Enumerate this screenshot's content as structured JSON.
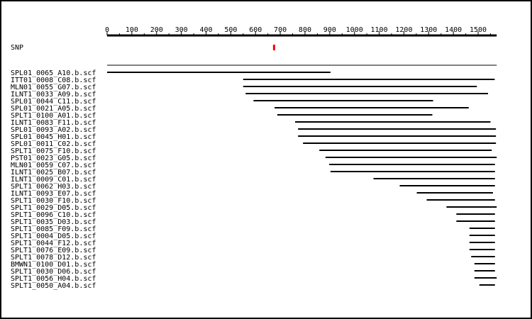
{
  "colors": {
    "background": "#ffffff",
    "axis": "#000000",
    "read_line": "#000000",
    "snp_marker": "#ff0000"
  },
  "snp_track": {
    "label": "SNP",
    "position": 675
  },
  "chart_data": {
    "type": "alignment",
    "axis": {
      "ticks": [
        0,
        100,
        200,
        300,
        400,
        500,
        600,
        700,
        800,
        900,
        1000,
        1100,
        1200,
        1300,
        1400,
        1500
      ],
      "range": [
        0,
        1575
      ]
    },
    "consensus": {
      "start": 0,
      "end": 1575
    },
    "reads": [
      {
        "name": "SPL01_0065_A10.b.scf",
        "start": 0,
        "end": 903
      },
      {
        "name": "ITT01_0008_C08.b.scf",
        "start": 550,
        "end": 1567
      },
      {
        "name": "MLN01_0055_G07.b.scf",
        "start": 550,
        "end": 1495
      },
      {
        "name": "ILNT1_0033_A09.b.scf",
        "start": 560,
        "end": 1540
      },
      {
        "name": "SPL01_0044_C11.b.scf",
        "start": 592,
        "end": 1318
      },
      {
        "name": "SPL01_0021_A05.b.scf",
        "start": 677,
        "end": 1462
      },
      {
        "name": "SPLT1_0100_A01.b.scf",
        "start": 688,
        "end": 1315
      },
      {
        "name": "ILNT1_0083_F11.b.scf",
        "start": 760,
        "end": 1550
      },
      {
        "name": "SPL01_0093_A02.b.scf",
        "start": 772,
        "end": 1572
      },
      {
        "name": "SPL01_0045_H01.b.scf",
        "start": 772,
        "end": 1572
      },
      {
        "name": "SPL01_0011_C02.b.scf",
        "start": 792,
        "end": 1572
      },
      {
        "name": "SPLT1_0075_F10.b.scf",
        "start": 858,
        "end": 1555
      },
      {
        "name": "PST01_0023_G05.b.scf",
        "start": 883,
        "end": 1575
      },
      {
        "name": "MLN01_0059_C07.b.scf",
        "start": 898,
        "end": 1568
      },
      {
        "name": "ILNT1_0025_B07.b.scf",
        "start": 903,
        "end": 1568
      },
      {
        "name": "ILNT1_0009_C01.b.scf",
        "start": 1077,
        "end": 1568
      },
      {
        "name": "SPLT1_0062_H03.b.scf",
        "start": 1183,
        "end": 1568
      },
      {
        "name": "ILNT1_0093_E07.b.scf",
        "start": 1252,
        "end": 1560
      },
      {
        "name": "SPLT1_0030_F10.b.scf",
        "start": 1292,
        "end": 1568
      },
      {
        "name": "SPLT1_0029_D05.b.scf",
        "start": 1372,
        "end": 1575
      },
      {
        "name": "SPLT1_0096_C10.b.scf",
        "start": 1412,
        "end": 1568
      },
      {
        "name": "SPLT1_0035_D03.b.scf",
        "start": 1412,
        "end": 1568
      },
      {
        "name": "SPLT1_0085_F09.b.scf",
        "start": 1465,
        "end": 1568
      },
      {
        "name": "SPLT1_0004_D05.b.scf",
        "start": 1465,
        "end": 1568
      },
      {
        "name": "SPLT1_0044_F12.b.scf",
        "start": 1465,
        "end": 1568
      },
      {
        "name": "SPLT1_0076_E09.b.scf",
        "start": 1465,
        "end": 1568
      },
      {
        "name": "SPLT1_0078_D12.b.scf",
        "start": 1472,
        "end": 1568
      },
      {
        "name": "BMWN1_0100_D01.b.scf",
        "start": 1485,
        "end": 1568
      },
      {
        "name": "SPLT1_0030_D06.b.scf",
        "start": 1485,
        "end": 1568
      },
      {
        "name": "SPLT1_0056_H04.b.scf",
        "start": 1485,
        "end": 1575
      },
      {
        "name": "SPLT1_0050_A04.b.scf",
        "start": 1505,
        "end": 1568
      }
    ]
  }
}
